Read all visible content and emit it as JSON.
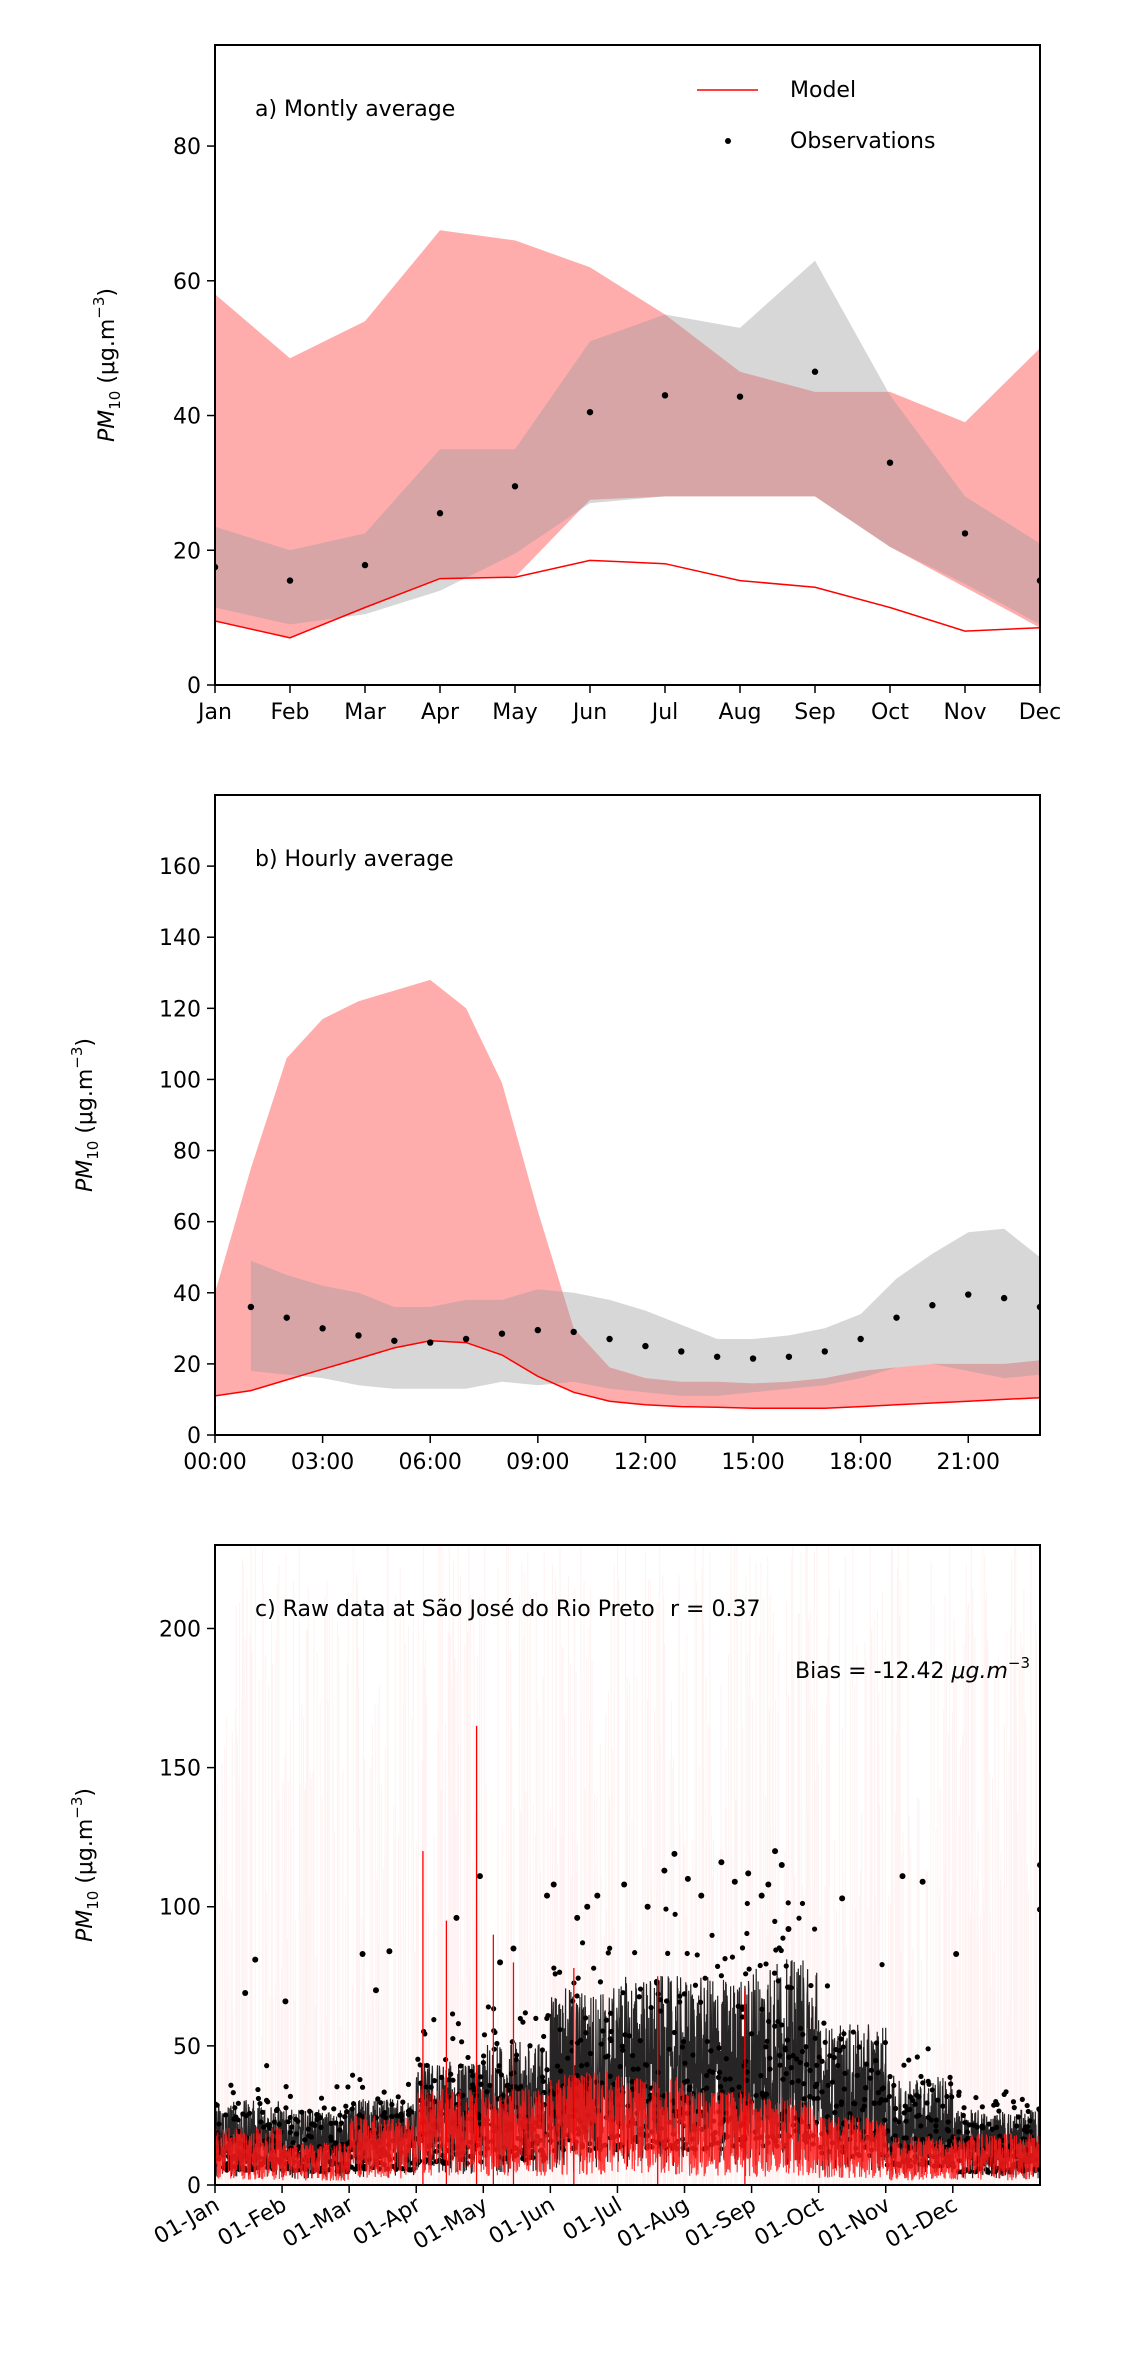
{
  "chart_data": [
    {
      "type": "area",
      "title": "a) Montly average",
      "ylabel": "PM10 (μg.m−3)",
      "ylabel_base": "PM",
      "ylabel_sub": "10",
      "ylabel_unit_open": " (μg.m",
      "ylabel_sup": "−3",
      "ylabel_close": ")",
      "categories": [
        "Jan",
        "Feb",
        "Mar",
        "Apr",
        "May",
        "Jun",
        "Jul",
        "Aug",
        "Sep",
        "Oct",
        "Nov",
        "Dec"
      ],
      "ylim": [
        0,
        95
      ],
      "yticks": [
        0,
        20,
        40,
        60,
        80
      ],
      "legend": {
        "placement": "top-right",
        "entries": [
          "Model",
          "Observations"
        ]
      },
      "series": [
        {
          "name": "Model",
          "kind": "line",
          "color": "#ff0000",
          "values": [
            9.5,
            7.0,
            11.5,
            15.8,
            16.0,
            18.5,
            18.0,
            15.5,
            14.5,
            11.5,
            8.0,
            8.5
          ]
        },
        {
          "name": "Model range",
          "kind": "band",
          "color": "#ffa8a8",
          "low": [
            9.5,
            7.0,
            11.5,
            15.8,
            16.0,
            27.5,
            28.0,
            28.0,
            28.0,
            20.5,
            14.5,
            8.5
          ],
          "high": [
            58.0,
            48.5,
            54.0,
            67.5,
            66.0,
            62.0,
            55.0,
            46.5,
            43.5,
            43.5,
            39.0,
            50.0
          ]
        },
        {
          "name": "Observation range",
          "kind": "band",
          "color": "#c8c8c8",
          "low": [
            11.5,
            9.0,
            10.5,
            14.0,
            19.5,
            27.0,
            28.0,
            28.0,
            28.0,
            20.5,
            15.0,
            9.0
          ],
          "high": [
            23.5,
            20.0,
            22.5,
            35.0,
            35.0,
            51.0,
            55.0,
            53.0,
            63.0,
            43.0,
            28.0,
            21.0
          ]
        },
        {
          "name": "Observations",
          "kind": "points",
          "color": "#000000",
          "values": [
            17.5,
            15.5,
            17.8,
            25.5,
            29.5,
            40.5,
            43.0,
            42.8,
            46.5,
            33.0,
            22.5,
            15.5
          ]
        }
      ]
    },
    {
      "type": "area",
      "title": "b) Hourly average",
      "ylabel": "PM10 (μg.m−3)",
      "ylabel_base": "PM",
      "ylabel_sub": "10",
      "ylabel_unit_open": " (μg.m",
      "ylabel_sup": "−3",
      "ylabel_close": ")",
      "x": [
        0,
        1,
        2,
        3,
        4,
        5,
        6,
        7,
        8,
        9,
        10,
        11,
        12,
        13,
        14,
        15,
        16,
        17,
        18,
        19,
        20,
        21,
        22,
        23
      ],
      "xlim": [
        0,
        23
      ],
      "xticks": [
        0,
        3,
        6,
        9,
        12,
        15,
        18,
        21
      ],
      "xtick_labels": [
        "00:00",
        "03:00",
        "06:00",
        "09:00",
        "12:00",
        "15:00",
        "18:00",
        "21:00"
      ],
      "ylim": [
        0,
        180
      ],
      "yticks": [
        0,
        20,
        40,
        60,
        80,
        100,
        120,
        140,
        160
      ],
      "series": [
        {
          "name": "Model",
          "kind": "line",
          "color": "#ff0000",
          "values": [
            11,
            12.5,
            15.5,
            18.5,
            21.5,
            24.5,
            26.5,
            26.0,
            22.5,
            16.5,
            12,
            9.5,
            8.5,
            8,
            7.8,
            7.5,
            7.5,
            7.5,
            8,
            8.5,
            9,
            9.5,
            10,
            10.5
          ]
        },
        {
          "name": "Model range",
          "kind": "band",
          "color": "#ffa8a8",
          "x": [
            0,
            1,
            2,
            3,
            4,
            5,
            6,
            7,
            8,
            9,
            10,
            11,
            12,
            13,
            14,
            15,
            16,
            17,
            18,
            19,
            20,
            21,
            22,
            23
          ],
          "low": [
            11,
            12.5,
            15.5,
            18.5,
            21.5,
            24.5,
            26.5,
            26.0,
            22.5,
            16.5,
            12,
            9.5,
            8.5,
            8,
            7.8,
            7.5,
            7.5,
            7.5,
            8,
            8.5,
            9,
            9.5,
            10,
            10.5
          ],
          "high": [
            40,
            75,
            106,
            117,
            122,
            125,
            128,
            120,
            99,
            63,
            30,
            19,
            16,
            15,
            15,
            14.5,
            15,
            16,
            18,
            19,
            20,
            20,
            20,
            21
          ]
        },
        {
          "name": "Observation range",
          "kind": "band",
          "color": "#c8c8c8",
          "x": [
            1,
            2,
            3,
            4,
            5,
            6,
            7,
            8,
            9,
            10,
            11,
            12,
            13,
            14,
            15,
            16,
            17,
            18,
            19,
            20,
            21,
            22,
            23
          ],
          "low": [
            18,
            17,
            16,
            14,
            13,
            13,
            13,
            15,
            14,
            15,
            13,
            12,
            11,
            11,
            12,
            13,
            14,
            16,
            19,
            20,
            18,
            16,
            17
          ],
          "high": [
            49,
            45,
            42,
            40,
            36,
            36,
            38,
            38,
            41,
            40,
            38,
            35,
            31,
            27,
            27,
            28,
            30,
            34,
            44,
            51,
            57,
            58,
            50
          ]
        },
        {
          "name": "Observations",
          "kind": "points",
          "color": "#000000",
          "x": [
            1,
            2,
            3,
            4,
            5,
            6,
            7,
            8,
            9,
            10,
            11,
            12,
            13,
            14,
            15,
            16,
            17,
            18,
            19,
            20,
            21,
            22,
            23
          ],
          "values": [
            36,
            33,
            30,
            28,
            26.5,
            26,
            27,
            28.5,
            29.5,
            29,
            27,
            25,
            23.5,
            22,
            21.5,
            22,
            23.5,
            27,
            33,
            36.5,
            39.5,
            38.5,
            36
          ]
        }
      ]
    },
    {
      "type": "line",
      "title": "c) Raw data at São José do Rio Preto",
      "annotations": [
        "r = 0.37",
        "Bias = -12.42 μg.m−3"
      ],
      "annotation_r": "r = 0.37",
      "annotation_bias_text": "Bias = -12.42 ",
      "annotation_bias_unit": "μg.m",
      "annotation_bias_sup": "−3",
      "ylabel": "PM10 (μg.m−3)",
      "ylabel_base": "PM",
      "ylabel_sub": "10",
      "ylabel_unit_open": " (μg.m",
      "ylabel_sup": "−3",
      "ylabel_close": ")",
      "x_unit": "month",
      "xlim": [
        0,
        12.3
      ],
      "xticks": [
        0,
        1,
        2,
        3,
        4,
        5,
        6,
        7,
        8,
        9,
        10,
        11
      ],
      "xtick_labels": [
        "01-Jan",
        "01-Feb",
        "01-Mar",
        "01-Apr",
        "01-May",
        "01-Jun",
        "01-Jul",
        "01-Aug",
        "01-Sep",
        "01-Oct",
        "01-Nov",
        "01-Dec"
      ],
      "ylim": [
        0,
        230
      ],
      "yticks": [
        0,
        50,
        100,
        150,
        200
      ],
      "series": [
        {
          "name": "Model",
          "kind": "line",
          "color": "#ff0000",
          "monthly_typical": [
            9.5,
            7.0,
            11.5,
            15.8,
            16.0,
            18.5,
            18.0,
            15.5,
            14.5,
            11.5,
            8.0,
            8.5
          ],
          "peaks": [
            {
              "x": 3.1,
              "y": 120
            },
            {
              "x": 3.45,
              "y": 95
            },
            {
              "x": 3.9,
              "y": 165
            },
            {
              "x": 4.15,
              "y": 90
            },
            {
              "x": 4.45,
              "y": 80
            },
            {
              "x": 5.35,
              "y": 78
            },
            {
              "x": 6.6,
              "y": 75
            },
            {
              "x": 7.9,
              "y": 70
            }
          ]
        },
        {
          "name": "Observations",
          "kind": "points",
          "color": "#000000",
          "monthly_typical": [
            17.5,
            15.5,
            17.8,
            25.5,
            29.5,
            40.5,
            43.0,
            42.8,
            46.5,
            33.0,
            22.5,
            15.5
          ],
          "high_points": [
            {
              "x": 0.45,
              "y": 69
            },
            {
              "x": 0.6,
              "y": 81
            },
            {
              "x": 1.05,
              "y": 66
            },
            {
              "x": 2.2,
              "y": 83
            },
            {
              "x": 2.4,
              "y": 70
            },
            {
              "x": 2.6,
              "y": 84
            },
            {
              "x": 3.6,
              "y": 96
            },
            {
              "x": 3.95,
              "y": 111
            },
            {
              "x": 4.25,
              "y": 80
            },
            {
              "x": 4.45,
              "y": 85
            },
            {
              "x": 4.95,
              "y": 104
            },
            {
              "x": 5.05,
              "y": 108
            },
            {
              "x": 5.4,
              "y": 96
            },
            {
              "x": 5.55,
              "y": 100
            },
            {
              "x": 5.7,
              "y": 104
            },
            {
              "x": 6.1,
              "y": 108
            },
            {
              "x": 6.45,
              "y": 100
            },
            {
              "x": 6.7,
              "y": 113
            },
            {
              "x": 6.85,
              "y": 119
            },
            {
              "x": 7.05,
              "y": 110
            },
            {
              "x": 7.25,
              "y": 104
            },
            {
              "x": 7.55,
              "y": 116
            },
            {
              "x": 7.75,
              "y": 109
            },
            {
              "x": 7.95,
              "y": 112
            },
            {
              "x": 8.15,
              "y": 104
            },
            {
              "x": 8.25,
              "y": 108
            },
            {
              "x": 8.35,
              "y": 120
            },
            {
              "x": 8.45,
              "y": 115
            },
            {
              "x": 8.55,
              "y": 92
            },
            {
              "x": 9.35,
              "y": 103
            },
            {
              "x": 10.25,
              "y": 111
            },
            {
              "x": 10.55,
              "y": 109
            },
            {
              "x": 11.05,
              "y": 83
            },
            {
              "x": 12.3,
              "y": 115
            },
            {
              "x": 12.3,
              "y": 99
            }
          ]
        }
      ]
    }
  ]
}
